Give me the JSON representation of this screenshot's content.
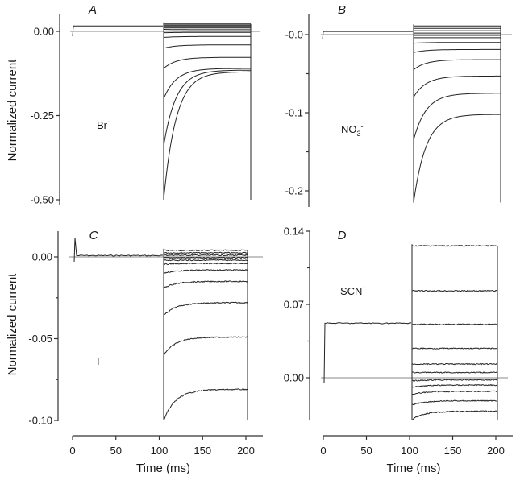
{
  "chart_data": [
    {
      "type": "line",
      "panel": "A",
      "ion_label": "Br",
      "ion_superscript": "-",
      "ion_subscript": "",
      "ylabel": "Normalized current",
      "xlabel": "",
      "ylim": [
        -0.5,
        0.03
      ],
      "yticks": [
        0.0,
        -0.25,
        -0.5
      ],
      "ytick_labels": [
        "0.00",
        "-0.25",
        "-0.50"
      ],
      "yminor": [],
      "xlim": [
        0,
        210
      ],
      "hold": {
        "t_start": 3,
        "t_end": 100,
        "value": 0.016
      },
      "step": {
        "t_start": 100,
        "t_end": 200
      },
      "traces": [
        {
          "peak": 0.022,
          "steady": 0.022
        },
        {
          "peak": 0.019,
          "steady": 0.019
        },
        {
          "peak": 0.016,
          "steady": 0.016
        },
        {
          "peak": 0.013,
          "steady": 0.013
        },
        {
          "peak": 0.01,
          "steady": 0.01
        },
        {
          "peak": 0.006,
          "steady": 0.005
        },
        {
          "peak": -0.004,
          "steady": -0.003
        },
        {
          "peak": -0.018,
          "steady": -0.015
        },
        {
          "peak": -0.05,
          "steady": -0.04
        },
        {
          "peak": -0.11,
          "steady": -0.077
        },
        {
          "peak": -0.2,
          "steady": -0.11
        },
        {
          "peak": -0.34,
          "steady": -0.115
        },
        {
          "peak": -0.5,
          "steady": -0.12
        }
      ]
    },
    {
      "type": "line",
      "panel": "B",
      "ion_label": "NO",
      "ion_superscript": "-",
      "ion_subscript": "3",
      "ylabel": "",
      "xlabel": "",
      "ylim": [
        -0.22,
        0.015
      ],
      "yticks": [
        0.0,
        -0.1,
        -0.2
      ],
      "ytick_labels": [
        "-0.0",
        "-0.1",
        "-0.2"
      ],
      "yminor": [
        -0.05,
        -0.15
      ],
      "xlim": [
        0,
        210
      ],
      "hold": {
        "t_start": 3,
        "t_end": 100,
        "value": 0.004
      },
      "step": {
        "t_start": 100,
        "t_end": 200
      },
      "traces": [
        {
          "peak": 0.011,
          "steady": 0.011
        },
        {
          "peak": 0.008,
          "steady": 0.008
        },
        {
          "peak": 0.005,
          "steady": 0.005
        },
        {
          "peak": 0.002,
          "steady": 0.002
        },
        {
          "peak": -0.001,
          "steady": -0.001
        },
        {
          "peak": -0.004,
          "steady": -0.004
        },
        {
          "peak": -0.011,
          "steady": -0.01
        },
        {
          "peak": -0.023,
          "steady": -0.019
        },
        {
          "peak": -0.045,
          "steady": -0.032
        },
        {
          "peak": -0.08,
          "steady": -0.053
        },
        {
          "peak": -0.135,
          "steady": -0.075
        },
        {
          "peak": -0.215,
          "steady": -0.102
        }
      ]
    },
    {
      "type": "line",
      "panel": "C",
      "ion_label": "I",
      "ion_superscript": "-",
      "ion_subscript": "",
      "ylabel": "Normalized current",
      "xlabel": "Time (ms)",
      "ylim": [
        -0.1,
        0.016
      ],
      "yticks": [
        0.0,
        -0.05,
        -0.1
      ],
      "ytick_labels": [
        "0.00",
        "-0.05",
        "-0.10"
      ],
      "yminor": [
        -0.025,
        -0.075
      ],
      "xlim": [
        0,
        220
      ],
      "xticks": [
        0,
        50,
        100,
        150,
        200
      ],
      "xtick_labels": [
        "0",
        "50",
        "100",
        "150",
        "200"
      ],
      "hold": {
        "t_start": 3,
        "t_end": 100,
        "value": 0.0008
      },
      "step": {
        "t_start": 102,
        "t_end": 200
      },
      "traces": [
        {
          "peak": 0.004,
          "steady": 0.004
        },
        {
          "peak": 0.0025,
          "steady": 0.0025
        },
        {
          "peak": 0.001,
          "steady": 0.001
        },
        {
          "peak": -0.0005,
          "steady": -0.0005
        },
        {
          "peak": -0.002,
          "steady": -0.002
        },
        {
          "peak": -0.0045,
          "steady": -0.004
        },
        {
          "peak": -0.01,
          "steady": -0.008
        },
        {
          "peak": -0.019,
          "steady": -0.015
        },
        {
          "peak": -0.036,
          "steady": -0.028
        },
        {
          "peak": -0.06,
          "steady": -0.049
        },
        {
          "peak": -0.1,
          "steady": -0.081
        }
      ]
    },
    {
      "type": "line",
      "panel": "D",
      "ion_label": "SCN",
      "ion_superscript": "-",
      "ion_subscript": "",
      "ylabel": "",
      "xlabel": "Time (ms)",
      "ylim": [
        -0.04,
        0.14
      ],
      "yticks": [
        0.14,
        0.07,
        0.0
      ],
      "ytick_labels": [
        "0.14",
        "0.07",
        "0.00"
      ],
      "yminor": [
        0.105,
        0.035
      ],
      "xlim": [
        0,
        220
      ],
      "xticks": [
        0,
        50,
        100,
        150,
        200
      ],
      "xtick_labels": [
        "0",
        "50",
        "100",
        "150",
        "200"
      ],
      "hold": {
        "t_start": 2,
        "t_end": 100,
        "value": 0.052
      },
      "step": {
        "t_start": 100,
        "t_end": 200
      },
      "traces": [
        {
          "peak": 0.126,
          "steady": 0.126
        },
        {
          "peak": 0.083,
          "steady": 0.083
        },
        {
          "peak": 0.051,
          "steady": 0.051
        },
        {
          "peak": 0.028,
          "steady": 0.028
        },
        {
          "peak": 0.013,
          "steady": 0.013
        },
        {
          "peak": 0.005,
          "steady": 0.005
        },
        {
          "peak": -0.003,
          "steady": -0.002
        },
        {
          "peak": -0.009,
          "steady": -0.007
        },
        {
          "peak": -0.016,
          "steady": -0.013
        },
        {
          "peak": -0.026,
          "steady": -0.022
        },
        {
          "peak": -0.04,
          "steady": -0.032
        }
      ]
    }
  ]
}
